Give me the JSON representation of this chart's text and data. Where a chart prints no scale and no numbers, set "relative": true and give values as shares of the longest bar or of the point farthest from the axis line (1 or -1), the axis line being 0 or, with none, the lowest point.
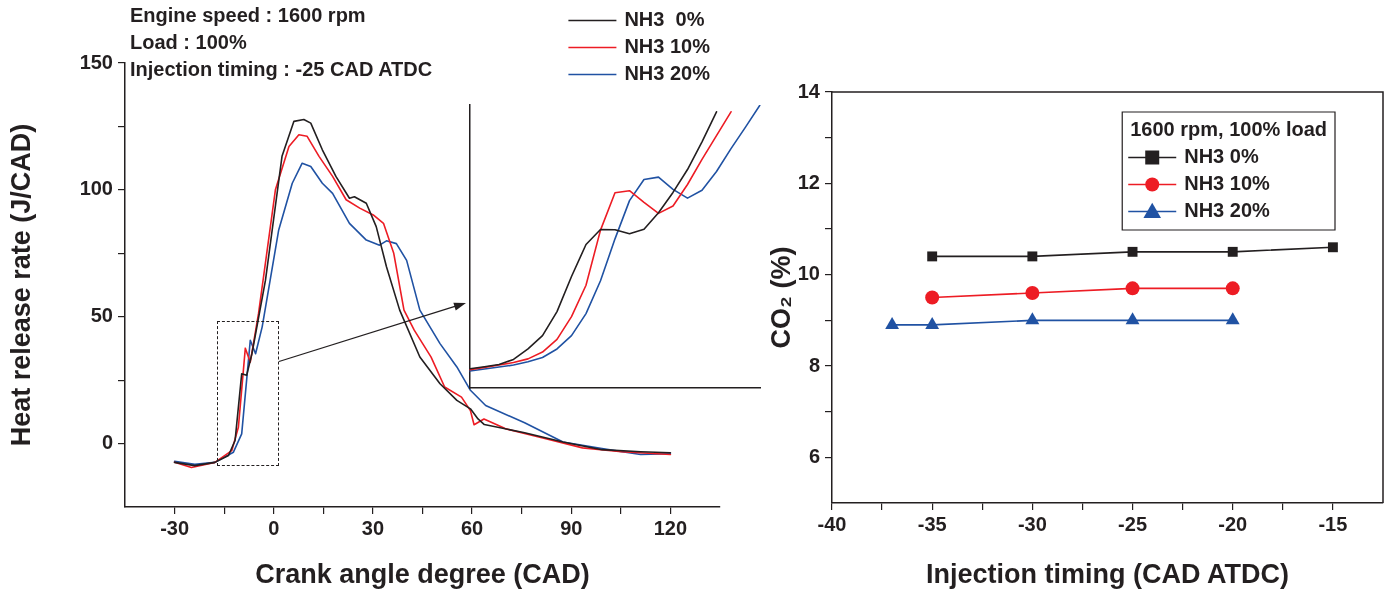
{
  "chart_data": [
    {
      "type": "line",
      "xlabel": "Crank angle degree (CAD)",
      "ylabel": "Heat release rate (J/CAD)",
      "xlim": [
        -45,
        135
      ],
      "ylim": [
        -25,
        150
      ],
      "xticks": [
        -30,
        {
          "value": -15,
          "label": null
        },
        0,
        {
          "value": 15,
          "label": null
        },
        30,
        {
          "value": 45,
          "label": null
        },
        60,
        {
          "value": 75,
          "label": null
        },
        90,
        {
          "value": 105,
          "label": null
        },
        120
      ],
      "yticks": [
        0,
        {
          "value": 25,
          "label": null
        },
        50,
        {
          "value": 75,
          "label": null
        },
        100,
        {
          "value": 125,
          "label": null
        },
        150
      ],
      "grid": false,
      "legend": "top right",
      "marker": "none",
      "line_style": "solid",
      "annotations": [
        "Engine speed : 1600 rpm",
        "Load : 100%",
        "Injection timing : -25 CAD ATDC"
      ],
      "series": [
        {
          "name": "NH3  0%",
          "color": "#231f20",
          "x": [
            -30,
            -23.9,
            -17.8,
            -13.7,
            -11.7,
            -9.7,
            -8.2,
            -6.6,
            -2.5,
            2.5,
            6.1,
            9.1,
            11.2,
            14.7,
            18.8,
            22.9,
            24.4,
            28.0,
            31.0,
            34.1,
            38.1,
            44.2,
            50.3,
            55.4,
            59.5,
            61.8,
            63.7,
            75.9,
            87.5,
            99.3,
            111,
            120
          ],
          "values": [
            -7.4,
            -8.7,
            -7.4,
            -4.7,
            1.2,
            27.5,
            26.9,
            35.4,
            64.4,
            113.2,
            127.0,
            127.7,
            126.3,
            115.8,
            105.3,
            96.7,
            97.3,
            94.7,
            85.5,
            69.7,
            52.6,
            34.1,
            23.6,
            17.0,
            13.7,
            9.7,
            7.5,
            4.3,
            0.6,
            -2.4,
            -3.2,
            -3.6
          ]
        },
        {
          "name": "NH3 10%",
          "color": "#ed1c24",
          "x": [
            -30,
            -24.9,
            -17.8,
            -12.7,
            -10.7,
            -8.6,
            -7.1,
            -4.6,
            0.5,
            4.6,
            7.6,
            10.1,
            13.7,
            17.8,
            21.9,
            26.0,
            30.1,
            33.2,
            36.3,
            39.4,
            42.5,
            47.6,
            51.7,
            56.8,
            59.5,
            60.6,
            63.6,
            70.0,
            81.7,
            93.4,
            105.2,
            120
          ],
          "values": [
            -7.4,
            -9.4,
            -7.4,
            -2.8,
            6.4,
            37.6,
            32.1,
            51.3,
            100,
            117.1,
            121.7,
            121.1,
            113.2,
            105.3,
            96.1,
            92.8,
            90.1,
            86.8,
            75.0,
            52.6,
            44.7,
            34.1,
            22.3,
            18.3,
            13.0,
            7.4,
            9.7,
            5.9,
            2.1,
            -1.7,
            -3.2,
            -4.3
          ]
        },
        {
          "name": "NH3 20%",
          "color": "#2052a3",
          "x": [
            -30,
            -23.9,
            -17.8,
            -12.2,
            -9.7,
            -7.1,
            -5.5,
            -3.5,
            1.5,
            5.6,
            8.6,
            11.2,
            14.7,
            17.8,
            22.9,
            28.0,
            32.0,
            34.1,
            37.1,
            40.2,
            44.2,
            50.3,
            55.4,
            59.5,
            64.1,
            75.9,
            87.5,
            99.3,
            111,
            120
          ],
          "values": [
            -7.0,
            -8.2,
            -7.4,
            -3.4,
            3.8,
            40.7,
            35.4,
            46.0,
            84.2,
            102.6,
            110.5,
            109.2,
            102.6,
            98.6,
            86.8,
            80.2,
            78.2,
            79.9,
            78.8,
            72.2,
            52.6,
            39.4,
            30.2,
            21.0,
            15.0,
            8.2,
            0.6,
            -2.0,
            -4.3,
            -4.0
          ]
        }
      ]
    },
    {
      "type": "line",
      "relative": true,
      "marker": "none",
      "categories": [
        null,
        null,
        null,
        null,
        null,
        null,
        null,
        null,
        null,
        null,
        null,
        null,
        null,
        null,
        null,
        null,
        null,
        null,
        null,
        null,
        null
      ],
      "series": [
        {
          "color": "#231f20",
          "values": [
            0.068,
            0.075,
            0.083,
            0.101,
            0.138,
            0.185,
            0.27,
            0.394,
            0.507,
            0.56,
            0.559,
            0.545,
            0.561,
            0.619,
            0.691,
            0.772,
            0.87,
            0.976,
            null,
            null,
            null
          ]
        },
        {
          "color": "#ed1c24",
          "values": [
            0.065,
            0.073,
            0.081,
            0.09,
            0.103,
            0.127,
            0.172,
            0.252,
            0.363,
            0.558,
            0.69,
            0.697,
            0.656,
            0.617,
            0.643,
            0.719,
            0.808,
            0.892,
            0.976,
            null,
            null
          ]
        },
        {
          "color": "#2052a3",
          "values": [
            0.06,
            0.067,
            0.074,
            0.081,
            0.093,
            0.108,
            0.138,
            0.185,
            0.263,
            0.379,
            0.527,
            0.662,
            0.737,
            0.745,
            0.702,
            0.671,
            0.699,
            0.765,
            0.846,
            0.922,
            1.0
          ]
        }
      ]
    },
    {
      "type": "line",
      "xlabel": "Injection timing (CAD ATDC)",
      "ylabel": "CO₂ (%)",
      "xlim": [
        -40,
        -12.5
      ],
      "ylim": [
        5,
        14
      ],
      "xticks": [
        -40,
        {
          "value": -37.5,
          "label": null
        },
        -35,
        {
          "value": -32.5,
          "label": null
        },
        -30,
        {
          "value": -27.5,
          "label": null
        },
        -25,
        {
          "value": -22.5,
          "label": null
        },
        -20,
        {
          "value": -17.5,
          "label": null
        },
        -15
      ],
      "yticks": [
        6,
        {
          "value": 7,
          "label": null
        },
        8,
        {
          "value": 9,
          "label": null
        },
        10,
        {
          "value": 11,
          "label": null
        },
        12,
        {
          "value": 13,
          "label": null
        },
        14
      ],
      "grid": false,
      "legend": "top right",
      "legend_title": "1600 rpm, 100% load",
      "line_style": "solid",
      "series": [
        {
          "name": "NH3 0%",
          "color": "#231f20",
          "marker": "square",
          "x": [
            -35,
            -30,
            -25,
            -20,
            -15
          ],
          "values": [
            10.4,
            10.4,
            10.5,
            10.5,
            10.6
          ]
        },
        {
          "name": "NH3 10%",
          "color": "#ed1c24",
          "marker": "circle",
          "x": [
            -35,
            -30,
            -25,
            -20
          ],
          "values": [
            9.5,
            9.6,
            9.7,
            9.7
          ]
        },
        {
          "name": "NH3 20%",
          "color": "#2052a3",
          "marker": "triangle",
          "x": [
            -37,
            -35,
            -30,
            -25,
            -20
          ],
          "values": [
            8.9,
            8.9,
            9.0,
            9.0,
            9.0
          ]
        }
      ]
    }
  ]
}
